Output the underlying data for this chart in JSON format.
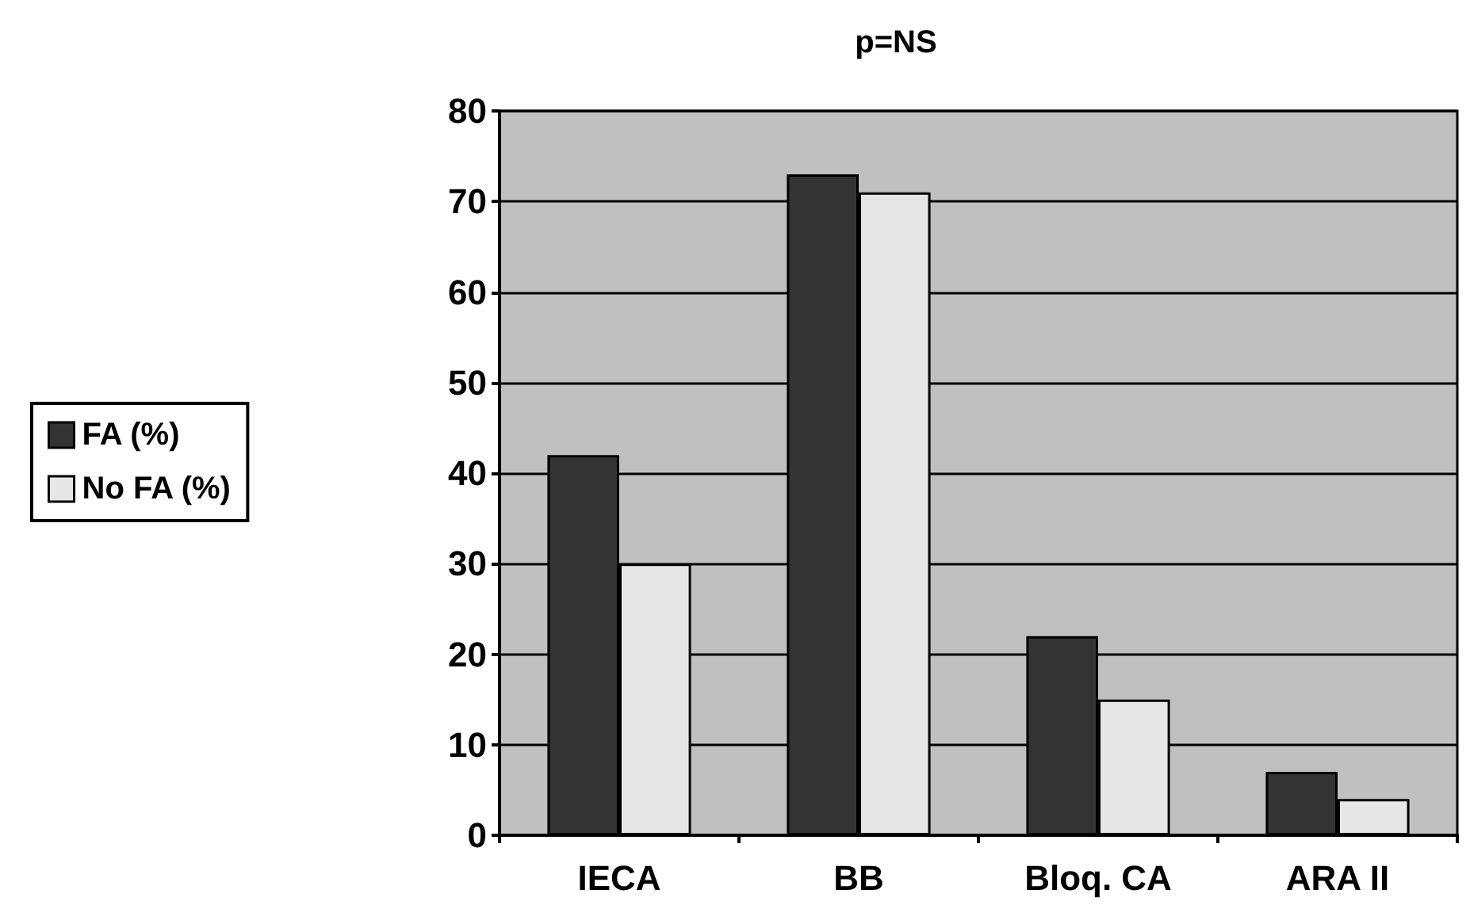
{
  "chart_data": {
    "type": "bar",
    "title": "p=NS",
    "categories": [
      "IECA",
      "BB",
      "Bloq. CA",
      "ARA II"
    ],
    "series": [
      {
        "name": "FA (%)",
        "color": "#333333",
        "values": [
          42,
          73,
          22,
          7
        ]
      },
      {
        "name": "No FA (%)",
        "color": "#e6e6e6",
        "values": [
          30,
          71,
          15,
          4
        ]
      }
    ],
    "ylim": [
      0,
      80
    ],
    "yticks": [
      0,
      10,
      20,
      30,
      40,
      50,
      60,
      70,
      80
    ],
    "grid": "y",
    "legend": "left"
  }
}
